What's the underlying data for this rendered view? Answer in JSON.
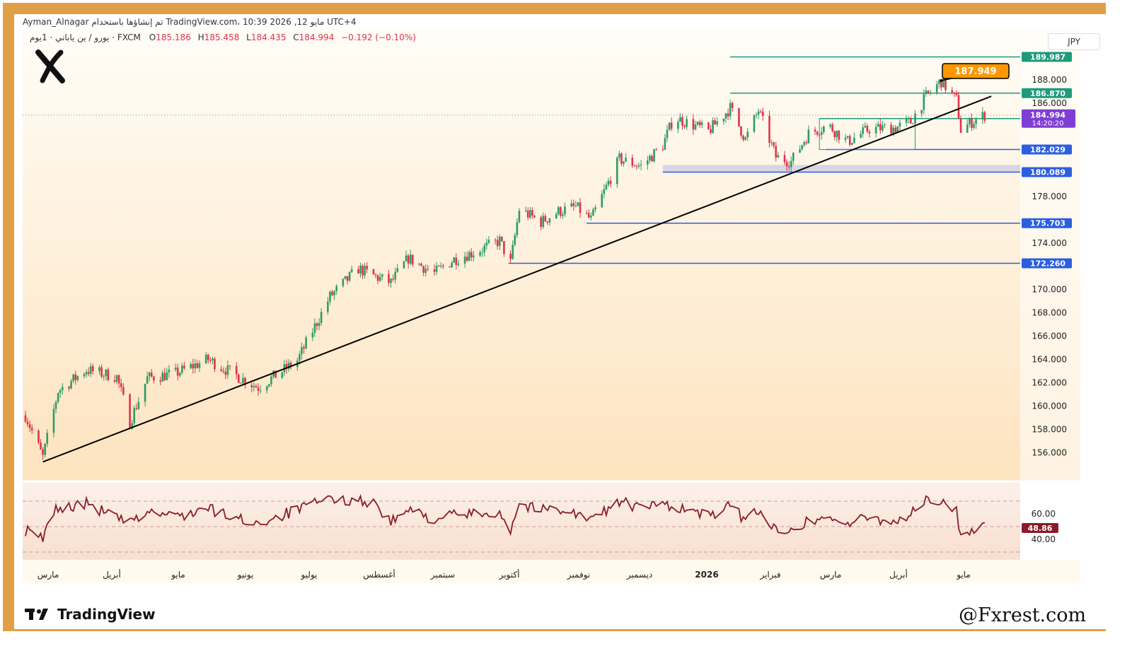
{
  "header": {
    "line1": "Ayman_Alnagar تم إنشاؤها باستخدام TradingView.com، 10:39 2026 ,12 مايو UTC+4",
    "symbol": "يورو / ين ياباني · 1يوم · FXCM",
    "ohlc": {
      "open_label": "O",
      "open": "185.186",
      "high_label": "H",
      "high": "185.458",
      "low_label": "L",
      "low": "184.435",
      "close_label": "C",
      "close": "184.994",
      "change": "−0.192 (−0.10%)"
    },
    "currency_button": "JPY"
  },
  "brand": {
    "tradingview": "TradingView",
    "watermark": "@Fxrest.com"
  },
  "colors": {
    "up": "#2e9c63",
    "down": "#e0334a",
    "trendline": "#000000",
    "level_green": "#1f9a7a",
    "level_blue": "#2b5fe0",
    "oscillator": "#8a1c28",
    "callout_bg": "#ff9800",
    "price_tag": "#7e3dd4",
    "frame": "#e1a047"
  },
  "chart_data": {
    "type": "candlestick",
    "symbol": "EUR/JPY",
    "timeframe": "1D",
    "y_ticks": [
      "188.000",
      "186.000",
      "178.000",
      "174.000",
      "170.000",
      "168.000",
      "166.000",
      "164.000",
      "162.000",
      "160.000",
      "158.000",
      "156.000"
    ],
    "x_ticks": [
      "مارس",
      "أبريل",
      "مايو",
      "يونيو",
      "يوليو",
      "أغسطس",
      "سبتمبر",
      "أكتوبر",
      "نوفمبر",
      "ديسمبر",
      "2026",
      "فبراير",
      "مارس",
      "أبريل",
      "مايو"
    ],
    "ylim": [
      154.5,
      190.5
    ],
    "levels": [
      {
        "value": 189.987,
        "label": "189.987",
        "color": "green"
      },
      {
        "value": 186.87,
        "label": "186.870",
        "color": "green"
      },
      {
        "value": 184.689,
        "label": "184.689",
        "color": "green"
      },
      {
        "value": 182.029,
        "label": "182.029",
        "color": "blue"
      },
      {
        "value": 180.089,
        "label": "180.089",
        "color": "blue"
      },
      {
        "value": 175.703,
        "label": "175.703",
        "color": "blue"
      },
      {
        "value": 172.26,
        "label": "172.260",
        "color": "blue"
      }
    ],
    "last_price": {
      "value": 184.994,
      "label": "184.994",
      "countdown": "14:20:20"
    },
    "peak_callout": {
      "value": 187.949,
      "label": "187.949"
    },
    "trendline": [
      {
        "x": "2025-03-05",
        "y": 155.2
      },
      {
        "x": "2026-05-15",
        "y": 186.6
      }
    ],
    "zone": {
      "low": 180.089,
      "high": 180.7
    },
    "path": [
      [
        "2025-02-25",
        159.2
      ],
      [
        "2025-03-05",
        155.6
      ],
      [
        "2025-03-12",
        161.3
      ],
      [
        "2025-03-25",
        163.1
      ],
      [
        "2025-04-08",
        162.5
      ],
      [
        "2025-04-14",
        158.6
      ],
      [
        "2025-04-22",
        162.4
      ],
      [
        "2025-05-05",
        162.8
      ],
      [
        "2025-05-20",
        164.0
      ],
      [
        "2025-06-02",
        162.6
      ],
      [
        "2025-06-12",
        161.6
      ],
      [
        "2025-06-30",
        163.9
      ],
      [
        "2025-07-15",
        169.4
      ],
      [
        "2025-07-28",
        171.8
      ],
      [
        "2025-08-05",
        171.1
      ],
      [
        "2025-08-12",
        170.6
      ],
      [
        "2025-08-20",
        172.7
      ],
      [
        "2025-09-01",
        171.4
      ],
      [
        "2025-09-10",
        172.6
      ],
      [
        "2025-09-22",
        173.4
      ],
      [
        "2025-10-01",
        174.2
      ],
      [
        "2025-10-03",
        173.4
      ],
      [
        "2025-10-06",
        172.3
      ],
      [
        "2025-10-10",
        176.9
      ],
      [
        "2025-10-20",
        175.8
      ],
      [
        "2025-10-28",
        176.7
      ],
      [
        "2025-11-05",
        177.1
      ],
      [
        "2025-11-12",
        176.0
      ],
      [
        "2025-11-25",
        181.2
      ],
      [
        "2025-12-05",
        180.6
      ],
      [
        "2025-12-15",
        182.4
      ],
      [
        "2025-12-20",
        184.8
      ],
      [
        "2026-01-05",
        183.6
      ],
      [
        "2026-01-15",
        185.6
      ],
      [
        "2026-01-22",
        182.9
      ],
      [
        "2026-01-28",
        185.4
      ],
      [
        "2026-02-05",
        181.4
      ],
      [
        "2026-02-12",
        181.0
      ],
      [
        "2026-02-20",
        183.4
      ],
      [
        "2026-03-01",
        184.1
      ],
      [
        "2026-03-10",
        182.7
      ],
      [
        "2026-03-20",
        183.8
      ],
      [
        "2026-04-01",
        183.9
      ],
      [
        "2026-04-08",
        184.4
      ],
      [
        "2026-04-15",
        186.6
      ],
      [
        "2026-04-22",
        187.9
      ],
      [
        "2026-04-29",
        186.3
      ],
      [
        "2026-05-01",
        183.7
      ],
      [
        "2026-05-06",
        184.4
      ],
      [
        "2026-05-12",
        184.99
      ]
    ],
    "oscillator": {
      "type": "line",
      "y_ticks": [
        "60.00",
        "40.00"
      ],
      "last_value": "48.86",
      "bands": [
        30,
        50,
        70
      ],
      "path": [
        [
          "2025-02-25",
          47
        ],
        [
          "2025-03-05",
          40
        ],
        [
          "2025-03-10",
          63
        ],
        [
          "2025-03-25",
          68
        ],
        [
          "2025-04-08",
          57
        ],
        [
          "2025-04-14",
          52
        ],
        [
          "2025-04-22",
          62
        ],
        [
          "2025-05-05",
          58
        ],
        [
          "2025-05-20",
          64
        ],
        [
          "2025-06-02",
          56
        ],
        [
          "2025-06-12",
          53
        ],
        [
          "2025-06-30",
          63
        ],
        [
          "2025-07-15",
          72
        ],
        [
          "2025-07-28",
          71
        ],
        [
          "2025-08-05",
          68
        ],
        [
          "2025-08-12",
          53
        ],
        [
          "2025-08-20",
          63
        ],
        [
          "2025-09-01",
          56
        ],
        [
          "2025-09-10",
          59
        ],
        [
          "2025-09-22",
          60
        ],
        [
          "2025-10-01",
          62
        ],
        [
          "2025-10-03",
          55
        ],
        [
          "2025-10-06",
          48
        ],
        [
          "2025-10-10",
          68
        ],
        [
          "2025-10-20",
          63
        ],
        [
          "2025-10-28",
          65
        ],
        [
          "2025-11-05",
          60
        ],
        [
          "2025-11-12",
          55
        ],
        [
          "2025-11-25",
          70
        ],
        [
          "2025-12-05",
          64
        ],
        [
          "2025-12-15",
          68
        ],
        [
          "2025-12-20",
          66
        ],
        [
          "2026-01-05",
          58
        ],
        [
          "2026-01-15",
          66
        ],
        [
          "2026-01-22",
          55
        ],
        [
          "2026-01-28",
          64
        ],
        [
          "2026-02-05",
          46
        ],
        [
          "2026-02-12",
          50
        ],
        [
          "2026-02-20",
          54
        ],
        [
          "2026-03-01",
          58
        ],
        [
          "2026-03-10",
          52
        ],
        [
          "2026-03-20",
          57
        ],
        [
          "2026-04-01",
          54
        ],
        [
          "2026-04-08",
          60
        ],
        [
          "2026-04-15",
          71
        ],
        [
          "2026-04-22",
          68
        ],
        [
          "2026-04-29",
          64
        ],
        [
          "2026-05-01",
          42
        ],
        [
          "2026-05-06",
          45
        ],
        [
          "2026-05-12",
          48.86
        ]
      ]
    }
  }
}
